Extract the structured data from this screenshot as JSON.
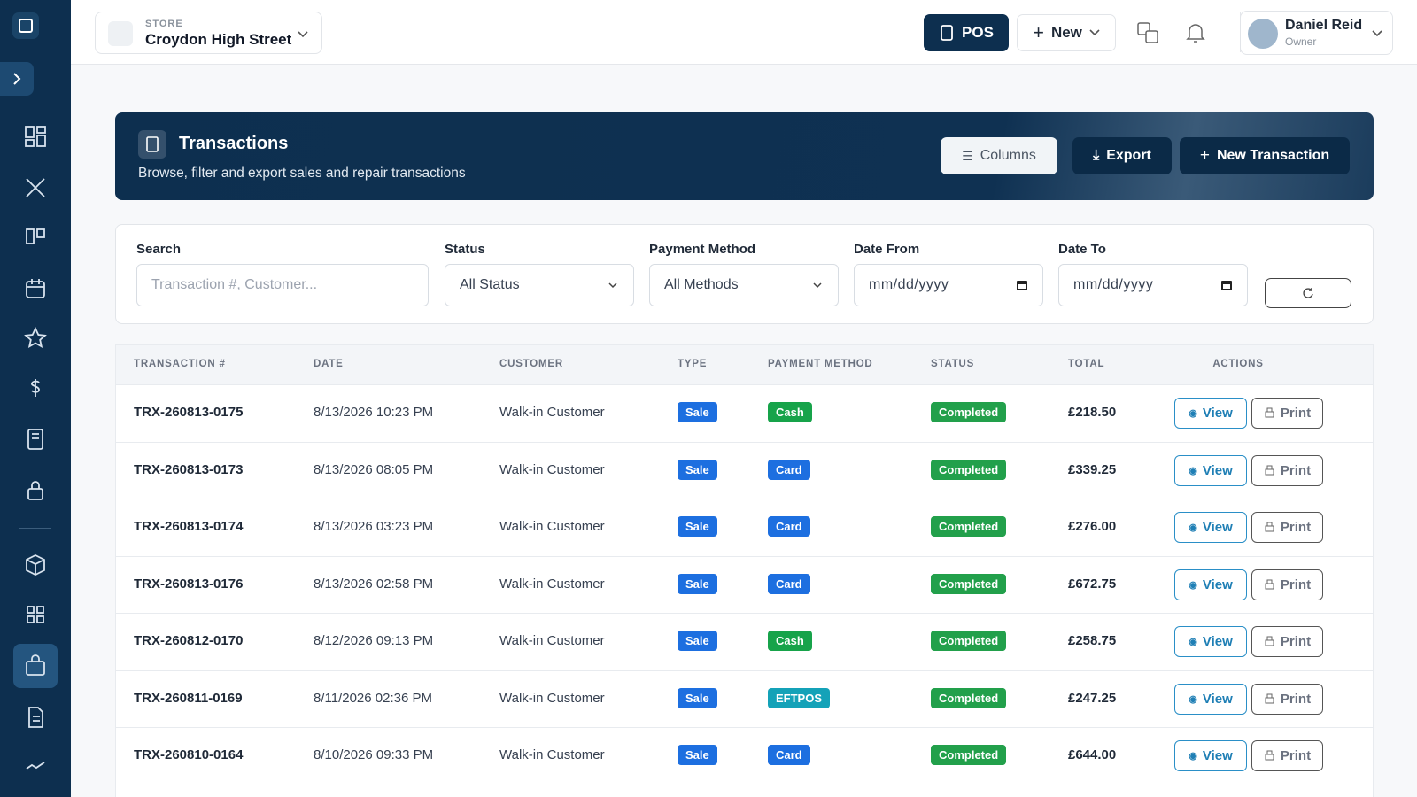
{
  "store": {
    "label": "STORE",
    "name": "Croydon High Street"
  },
  "topbar": {
    "pos": "POS",
    "new": "New",
    "user": {
      "name": "Daniel Reid",
      "role": "Owner"
    }
  },
  "header": {
    "title": "Transactions",
    "subtitle": "Browse, filter and export sales and repair transactions",
    "buttons": [
      "Columns",
      "Export",
      "New Transaction"
    ]
  },
  "filters": [
    {
      "label": "Search",
      "placeholder": "Transaction #, Customer..."
    },
    {
      "label": "Status",
      "value": "All Status"
    },
    {
      "label": "Payment Method",
      "value": "All Methods"
    },
    {
      "label": "Date From",
      "value": "mm/dd/yyyy"
    },
    {
      "label": "Date To",
      "value": "mm/dd/yyyy"
    }
  ],
  "table": {
    "columns": [
      "TRANSACTION #",
      "DATE",
      "CUSTOMER",
      "TYPE",
      "PAYMENT METHOD",
      "STATUS",
      "TOTAL",
      "ACTIONS"
    ],
    "actions": [
      "View",
      "Print"
    ],
    "rows": [
      [
        "TRX-260813-0175",
        "8/13/2026 10:23 PM",
        "Walk-in Customer",
        "Sale",
        "Cash",
        "Completed",
        "£218.50"
      ],
      [
        "TRX-260813-0173",
        "8/13/2026 08:05 PM",
        "Walk-in Customer",
        "Sale",
        "Card",
        "Completed",
        "£339.25"
      ],
      [
        "TRX-260813-0174",
        "8/13/2026 03:23 PM",
        "Walk-in Customer",
        "Sale",
        "Card",
        "Completed",
        "£276.00"
      ],
      [
        "TRX-260813-0176",
        "8/13/2026 02:58 PM",
        "Walk-in Customer",
        "Sale",
        "Card",
        "Completed",
        "£672.75"
      ],
      [
        "TRX-260812-0170",
        "8/12/2026 09:13 PM",
        "Walk-in Customer",
        "Sale",
        "Cash",
        "Completed",
        "£258.75"
      ],
      [
        "TRX-260811-0169",
        "8/11/2026 02:36 PM",
        "Walk-in Customer",
        "Sale",
        "EFTPOS",
        "Completed",
        "£247.25"
      ],
      [
        "TRX-260810-0164",
        "8/10/2026 09:33 PM",
        "Walk-in Customer",
        "Sale",
        "Card",
        "Completed",
        "£644.00"
      ]
    ]
  }
}
